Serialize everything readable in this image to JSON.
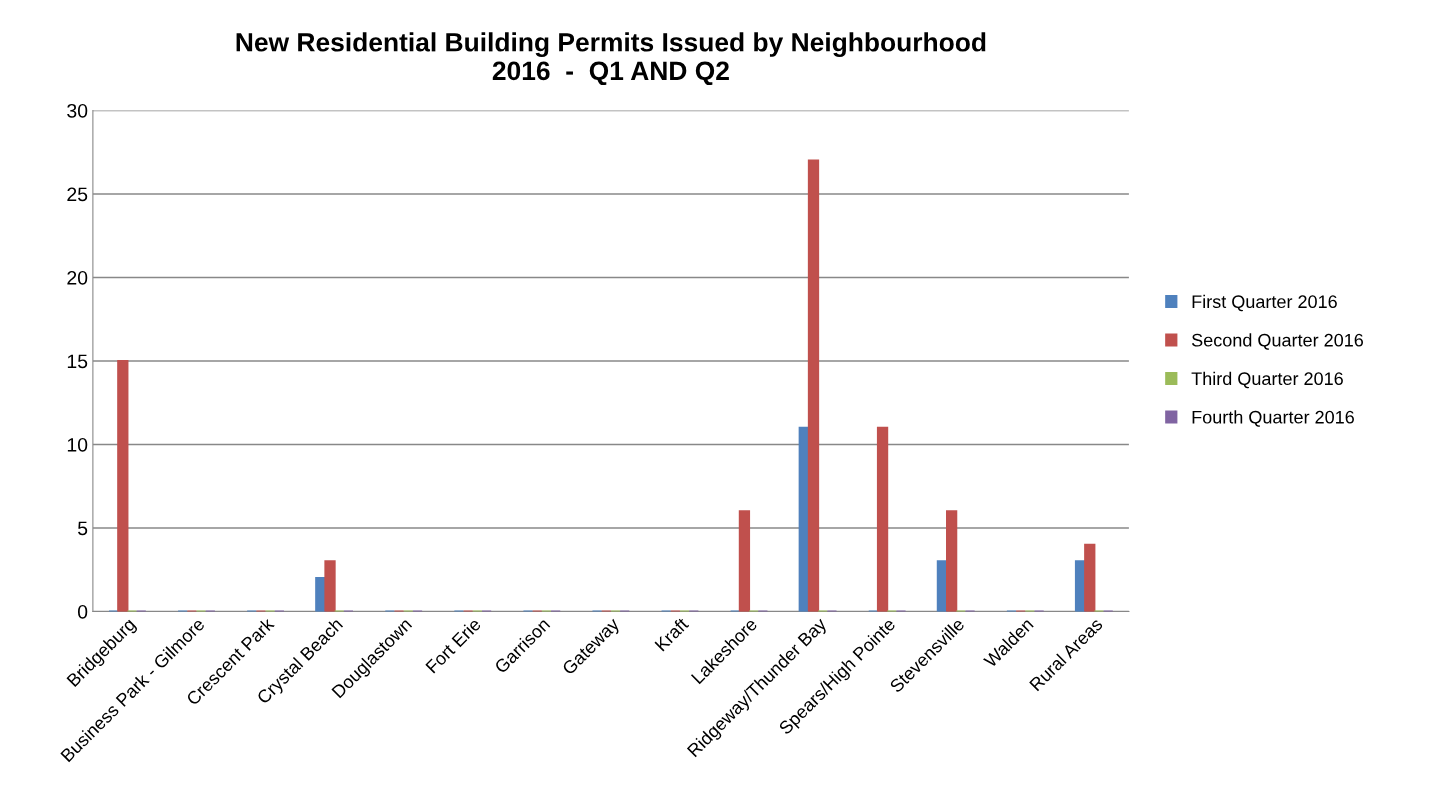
{
  "chart_data": {
    "type": "bar",
    "title": "New Residential Building Permits Issued by Neighbourhood\n2016  -  Q1 AND Q2",
    "categories": [
      "Bridgeburg",
      "Business Park - Gilmore",
      "Crescent Park",
      "Crystal Beach",
      "Douglastown",
      "Fort Erie",
      "Garrison",
      "Gateway",
      "Kraft",
      "Lakeshore",
      "Ridgeway/Thunder Bay",
      "Spears/High Pointe",
      "Stevensville",
      "Walden",
      "Rural Areas"
    ],
    "series": [
      {
        "name": "First Quarter 2016",
        "color": "#4f81bd",
        "values": [
          0,
          0,
          0,
          2,
          0,
          0,
          0,
          0,
          0,
          0,
          11,
          0,
          3,
          0,
          3
        ]
      },
      {
        "name": "Second Quarter 2016",
        "color": "#c0504d",
        "values": [
          15,
          0,
          0,
          3,
          0,
          0,
          0,
          0,
          0,
          6,
          27,
          11,
          6,
          0,
          4
        ]
      },
      {
        "name": "Third Quarter 2016",
        "color": "#9bbb59",
        "values": [
          0,
          0,
          0,
          0,
          0,
          0,
          0,
          0,
          0,
          0,
          0,
          0,
          0,
          0,
          0
        ]
      },
      {
        "name": "Fourth Quarter 2016",
        "color": "#8064a2",
        "values": [
          0,
          0,
          0,
          0,
          0,
          0,
          0,
          0,
          0,
          0,
          0,
          0,
          0,
          0,
          0
        ]
      }
    ],
    "ylim": [
      0,
      30
    ],
    "yticks": [
      0,
      5,
      10,
      15,
      20,
      25,
      30
    ],
    "grid": "y",
    "legend": "right"
  }
}
